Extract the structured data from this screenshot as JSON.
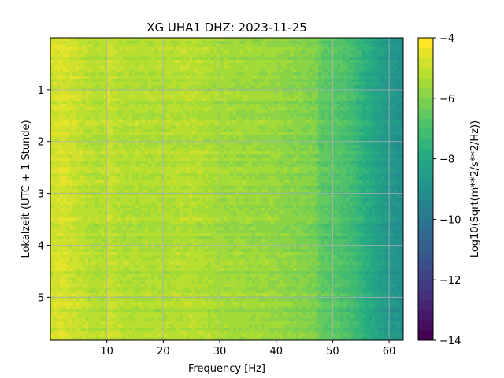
{
  "chart_data": {
    "type": "heatmap",
    "title": "XG UHA1  DHZ: 2023-11-25",
    "xlabel": "Frequency [Hz]",
    "ylabel": "Lokalzeit (UTC + 1 Stunde)",
    "xlim": [
      0,
      62.5
    ],
    "ylim": [
      5.83,
      0
    ],
    "x_ticks": [
      10,
      20,
      30,
      40,
      50,
      60
    ],
    "y_ticks": [
      1,
      2,
      3,
      4,
      5
    ],
    "grid": true,
    "colormap": "viridis",
    "colorbar": {
      "label": "Log10(Sqrt(m**2/s**2/Hz))",
      "range": [
        -14,
        -4
      ],
      "ticks": [
        -4,
        -6,
        -8,
        -10,
        -12,
        -14
      ],
      "tick_labels": [
        "−4",
        "−6",
        "−8",
        "−10",
        "−12",
        "−14"
      ],
      "levels": 30
    },
    "spectrum_profile": {
      "frequency_hz": [
        0,
        2,
        5,
        8,
        10,
        10.5,
        11,
        13,
        16,
        20,
        25,
        30,
        35,
        40,
        43,
        45,
        47,
        48,
        50,
        52,
        54,
        56,
        58,
        60,
        62.5
      ],
      "log10_amplitude": [
        -4.9,
        -4.7,
        -5.0,
        -5.3,
        -5.2,
        -4.8,
        -5.1,
        -5.3,
        -5.3,
        -5.3,
        -5.2,
        -5.5,
        -5.6,
        -5.7,
        -5.9,
        -6.0,
        -6.1,
        -6.6,
        -6.7,
        -6.9,
        -7.3,
        -7.8,
        -8.3,
        -8.7,
        -9.0
      ]
    }
  }
}
